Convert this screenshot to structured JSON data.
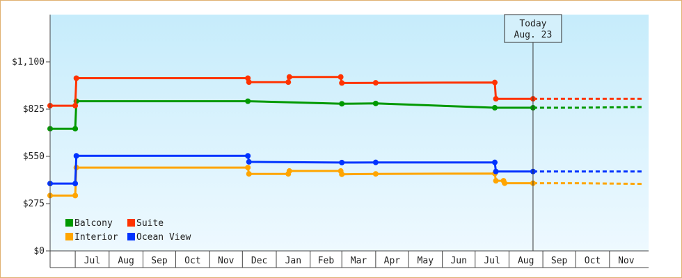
{
  "chart_data": {
    "type": "line",
    "title": "",
    "xlabel": "",
    "ylabel": "",
    "ylim": [
      0,
      1375
    ],
    "y_ticks": [
      {
        "value": 0,
        "label": "$0"
      },
      {
        "value": 275,
        "label": "$275"
      },
      {
        "value": 550,
        "label": "$550"
      },
      {
        "value": 825,
        "label": "$825"
      },
      {
        "value": 1100,
        "label": "$1,100"
      }
    ],
    "x_ticks": [
      {
        "date": "2019-07-01",
        "label": "Jul"
      },
      {
        "date": "2019-08-01",
        "label": "Aug"
      },
      {
        "date": "2019-09-01",
        "label": "Sep"
      },
      {
        "date": "2019-10-01",
        "label": "Oct"
      },
      {
        "date": "2019-11-01",
        "label": "Nov"
      },
      {
        "date": "2019-12-01",
        "label": "Dec"
      },
      {
        "date": "2020-01-01",
        "label": "Jan"
      },
      {
        "date": "2020-02-01",
        "label": "Feb"
      },
      {
        "date": "2020-03-01",
        "label": "Mar"
      },
      {
        "date": "2020-04-01",
        "label": "Apr"
      },
      {
        "date": "2020-05-01",
        "label": "May"
      },
      {
        "date": "2020-06-01",
        "label": "Jun"
      },
      {
        "date": "2020-07-01",
        "label": "Jul"
      },
      {
        "date": "2020-08-01",
        "label": "Aug"
      },
      {
        "date": "2020-09-01",
        "label": "Sep"
      },
      {
        "date": "2020-10-01",
        "label": "Oct"
      },
      {
        "date": "2020-11-01",
        "label": "Nov"
      }
    ],
    "today": {
      "date": "2020-08-23",
      "label_line1": "Today",
      "label_line2": "Aug. 23"
    },
    "legend": {
      "placement": "bottom-left"
    },
    "series": [
      {
        "name": "Balcony",
        "color": "#009900",
        "points": [
          {
            "date": "2019-06-08",
            "value": 711
          },
          {
            "date": "2019-07-01",
            "value": 711
          },
          {
            "date": "2019-07-02",
            "value": 871
          },
          {
            "date": "2019-12-06",
            "value": 871
          },
          {
            "date": "2020-03-01",
            "value": 856
          },
          {
            "date": "2020-04-01",
            "value": 858
          },
          {
            "date": "2020-07-19",
            "value": 833
          },
          {
            "date": "2020-08-23",
            "value": 833
          }
        ],
        "forecast": [
          {
            "date": "2020-08-23",
            "value": 833
          },
          {
            "date": "2020-10-01",
            "value": 833
          },
          {
            "date": "2020-12-01",
            "value": 837
          }
        ]
      },
      {
        "name": "Suite",
        "color": "#ff3300",
        "points": [
          {
            "date": "2019-06-08",
            "value": 845
          },
          {
            "date": "2019-07-01",
            "value": 845
          },
          {
            "date": "2019-07-02",
            "value": 1005
          },
          {
            "date": "2019-12-06",
            "value": 1005
          },
          {
            "date": "2019-12-07",
            "value": 982
          },
          {
            "date": "2020-01-12",
            "value": 982
          },
          {
            "date": "2020-01-13",
            "value": 1012
          },
          {
            "date": "2020-02-29",
            "value": 1012
          },
          {
            "date": "2020-03-01",
            "value": 977
          },
          {
            "date": "2020-04-01",
            "value": 978
          },
          {
            "date": "2020-07-19",
            "value": 980
          },
          {
            "date": "2020-07-20",
            "value": 885
          },
          {
            "date": "2020-08-23",
            "value": 885
          }
        ],
        "forecast": [
          {
            "date": "2020-08-23",
            "value": 885
          },
          {
            "date": "2020-12-01",
            "value": 885
          }
        ]
      },
      {
        "name": "Interior",
        "color": "#ffa500",
        "points": [
          {
            "date": "2019-06-08",
            "value": 322
          },
          {
            "date": "2019-07-01",
            "value": 322
          },
          {
            "date": "2019-07-02",
            "value": 485
          },
          {
            "date": "2019-12-06",
            "value": 485
          },
          {
            "date": "2019-12-07",
            "value": 448
          },
          {
            "date": "2020-01-12",
            "value": 448
          },
          {
            "date": "2020-01-13",
            "value": 465
          },
          {
            "date": "2020-02-29",
            "value": 465
          },
          {
            "date": "2020-03-01",
            "value": 446
          },
          {
            "date": "2020-04-01",
            "value": 448
          },
          {
            "date": "2020-07-19",
            "value": 450
          },
          {
            "date": "2020-07-20",
            "value": 408
          },
          {
            "date": "2020-07-27",
            "value": 408
          },
          {
            "date": "2020-07-28",
            "value": 394
          },
          {
            "date": "2020-08-23",
            "value": 394
          }
        ],
        "forecast": [
          {
            "date": "2020-08-23",
            "value": 394
          },
          {
            "date": "2020-10-01",
            "value": 394
          },
          {
            "date": "2020-12-01",
            "value": 390
          }
        ]
      },
      {
        "name": "Ocean View",
        "color": "#0033ff",
        "points": [
          {
            "date": "2019-06-08",
            "value": 392
          },
          {
            "date": "2019-07-01",
            "value": 392
          },
          {
            "date": "2019-07-02",
            "value": 553
          },
          {
            "date": "2019-12-06",
            "value": 553
          },
          {
            "date": "2019-12-07",
            "value": 518
          },
          {
            "date": "2020-03-01",
            "value": 514
          },
          {
            "date": "2020-04-01",
            "value": 515
          },
          {
            "date": "2020-07-19",
            "value": 515
          },
          {
            "date": "2020-07-20",
            "value": 462
          },
          {
            "date": "2020-08-23",
            "value": 462
          }
        ],
        "forecast": [
          {
            "date": "2020-08-23",
            "value": 462
          },
          {
            "date": "2020-12-01",
            "value": 462
          }
        ]
      }
    ]
  }
}
